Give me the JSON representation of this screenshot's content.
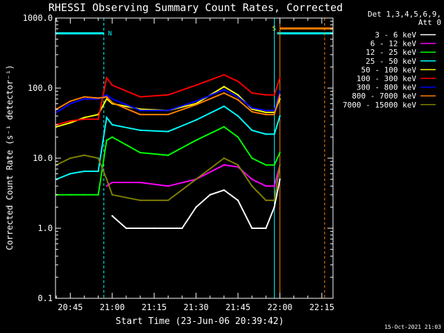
{
  "chart_data": {
    "type": "line",
    "title": "RHESSI Observing Summary Count Rates, Corrected",
    "xlabel": "Start Time (23-Jun-06 20:39:42)",
    "ylabel": "Corrected Count Rate (s⁻¹ detector⁻¹)",
    "ylog": true,
    "xlim": [
      "20:39:42",
      "22:19:00"
    ],
    "ylim": [
      0.1,
      1000
    ],
    "x_ticks": [
      "20:45",
      "21:00",
      "21:15",
      "21:30",
      "21:45",
      "22:00",
      "22:15"
    ],
    "y_ticks": [
      "0.1",
      "1.0",
      "10.0",
      "100.0",
      "1000.0"
    ],
    "legend_position": "top-right",
    "legend_header": [
      "Det 1,3,4,5,6,9,",
      "Att 0"
    ],
    "timestamp": "15-Oct-2021 21:03",
    "bar_labels": {
      "night": "N",
      "saa": "S"
    },
    "series": [
      {
        "name": "3 - 6 keV",
        "color": "#ffffff",
        "x": [
          "21:00",
          "21:05",
          "21:15",
          "21:25",
          "21:30",
          "21:35",
          "21:40",
          "21:45",
          "21:50",
          "21:55",
          "21:58",
          "22:00"
        ],
        "values": [
          1.5,
          1.0,
          1.0,
          1.0,
          2.0,
          3.0,
          3.5,
          2.5,
          1.0,
          1.0,
          2.0,
          5.0
        ]
      },
      {
        "name": "6 - 12 keV",
        "color": "#ff00ff",
        "x": [
          "20:58",
          "21:00",
          "21:10",
          "21:20",
          "21:30",
          "21:40",
          "21:45",
          "21:50",
          "21:55",
          "21:58",
          "22:00"
        ],
        "values": [
          4.0,
          4.5,
          4.5,
          4.0,
          5.0,
          8.0,
          7.5,
          5.0,
          4.0,
          4.0,
          8.0
        ]
      },
      {
        "name": "12 - 25 keV",
        "color": "#00ff00",
        "x": [
          "20:40",
          "20:45",
          "20:50",
          "20:55",
          "20:58",
          "21:00",
          "21:10",
          "21:20",
          "21:30",
          "21:40",
          "21:45",
          "21:50",
          "21:55",
          "21:58",
          "22:00"
        ],
        "values": [
          3.0,
          3.0,
          3.0,
          3.0,
          18.0,
          20.0,
          12.0,
          11.0,
          18.0,
          28.0,
          20.0,
          10.0,
          8.0,
          8.0,
          12.0
        ]
      },
      {
        "name": "25 - 50 keV",
        "color": "#00ffff",
        "x": [
          "20:40",
          "20:45",
          "20:50",
          "20:55",
          "20:58",
          "21:00",
          "21:10",
          "21:20",
          "21:30",
          "21:40",
          "21:45",
          "21:50",
          "21:55",
          "21:58",
          "22:00"
        ],
        "values": [
          5.0,
          6.0,
          6.5,
          6.5,
          38.0,
          30.0,
          25.0,
          24.0,
          35.0,
          55.0,
          40.0,
          25.0,
          22.0,
          22.0,
          40.0
        ]
      },
      {
        "name": "50 - 100 keV",
        "color": "#ffff00",
        "x": [
          "20:40",
          "20:45",
          "20:50",
          "20:55",
          "20:58",
          "21:00",
          "21:10",
          "21:20",
          "21:30",
          "21:40",
          "21:45",
          "21:50",
          "21:55",
          "21:58",
          "22:00"
        ],
        "values": [
          28.0,
          32.0,
          38.0,
          42.0,
          70.0,
          60.0,
          50.0,
          48.0,
          60.0,
          105.0,
          80.0,
          50.0,
          45.0,
          45.0,
          70.0
        ]
      },
      {
        "name": "100 - 300 keV",
        "color": "#ff0000",
        "x": [
          "20:40",
          "20:45",
          "20:50",
          "20:55",
          "20:58",
          "21:00",
          "21:10",
          "21:20",
          "21:30",
          "21:40",
          "21:45",
          "21:50",
          "21:55",
          "21:58",
          "22:00"
        ],
        "values": [
          30.0,
          34.0,
          36.0,
          36.0,
          140.0,
          110.0,
          75.0,
          80.0,
          110.0,
          155.0,
          125.0,
          85.0,
          80.0,
          80.0,
          140.0
        ]
      },
      {
        "name": "300 - 800 keV",
        "color": "#0000ff",
        "x": [
          "20:40",
          "20:45",
          "20:50",
          "20:55",
          "20:58",
          "21:00",
          "21:10",
          "21:20",
          "21:30",
          "21:40",
          "21:45",
          "21:50",
          "21:55",
          "21:58",
          "22:00"
        ],
        "values": [
          45.0,
          60.0,
          70.0,
          70.0,
          80.0,
          70.0,
          48.0,
          48.0,
          65.0,
          95.0,
          75.0,
          52.0,
          48.0,
          48.0,
          90.0
        ]
      },
      {
        "name": "800 - 7000 keV",
        "color": "#ff8000",
        "x": [
          "20:40",
          "20:45",
          "20:50",
          "20:55",
          "20:58",
          "21:00",
          "21:10",
          "21:20",
          "21:30",
          "21:40",
          "21:45",
          "21:50",
          "21:55",
          "21:58",
          "22:00"
        ],
        "values": [
          50.0,
          65.0,
          75.0,
          72.0,
          75.0,
          62.0,
          42.0,
          42.0,
          58.0,
          85.0,
          68.0,
          46.0,
          42.0,
          42.0,
          80.0
        ]
      },
      {
        "name": "7000 - 15000 keV",
        "color": "#808000",
        "x": [
          "20:40",
          "20:45",
          "20:50",
          "20:55",
          "20:58",
          "21:00",
          "21:10",
          "21:20",
          "21:30",
          "21:40",
          "21:45",
          "21:50",
          "21:55",
          "21:58",
          "22:00"
        ],
        "values": [
          8.0,
          10.0,
          11.0,
          10.0,
          5.0,
          3.0,
          2.5,
          2.5,
          5.0,
          10.0,
          8.0,
          4.0,
          2.5,
          2.5,
          8.0
        ]
      }
    ],
    "night_bars": [
      {
        "start": "20:39:42",
        "end": "20:57:00"
      },
      {
        "start": "21:59:00",
        "end": "22:19:00"
      }
    ],
    "saa_bar": {
      "start": "22:00:00",
      "end": "22:19:00"
    },
    "markers": [
      {
        "time": "20:57:00",
        "color": "#00ffff",
        "style": "dashed"
      },
      {
        "time": "21:58:00",
        "color": "#00ffff",
        "style": "solid"
      },
      {
        "time": "22:00:00",
        "color": "#ff8000",
        "style": "solid"
      },
      {
        "time": "22:16:00",
        "color": "#ff8000",
        "style": "dashed"
      }
    ]
  }
}
